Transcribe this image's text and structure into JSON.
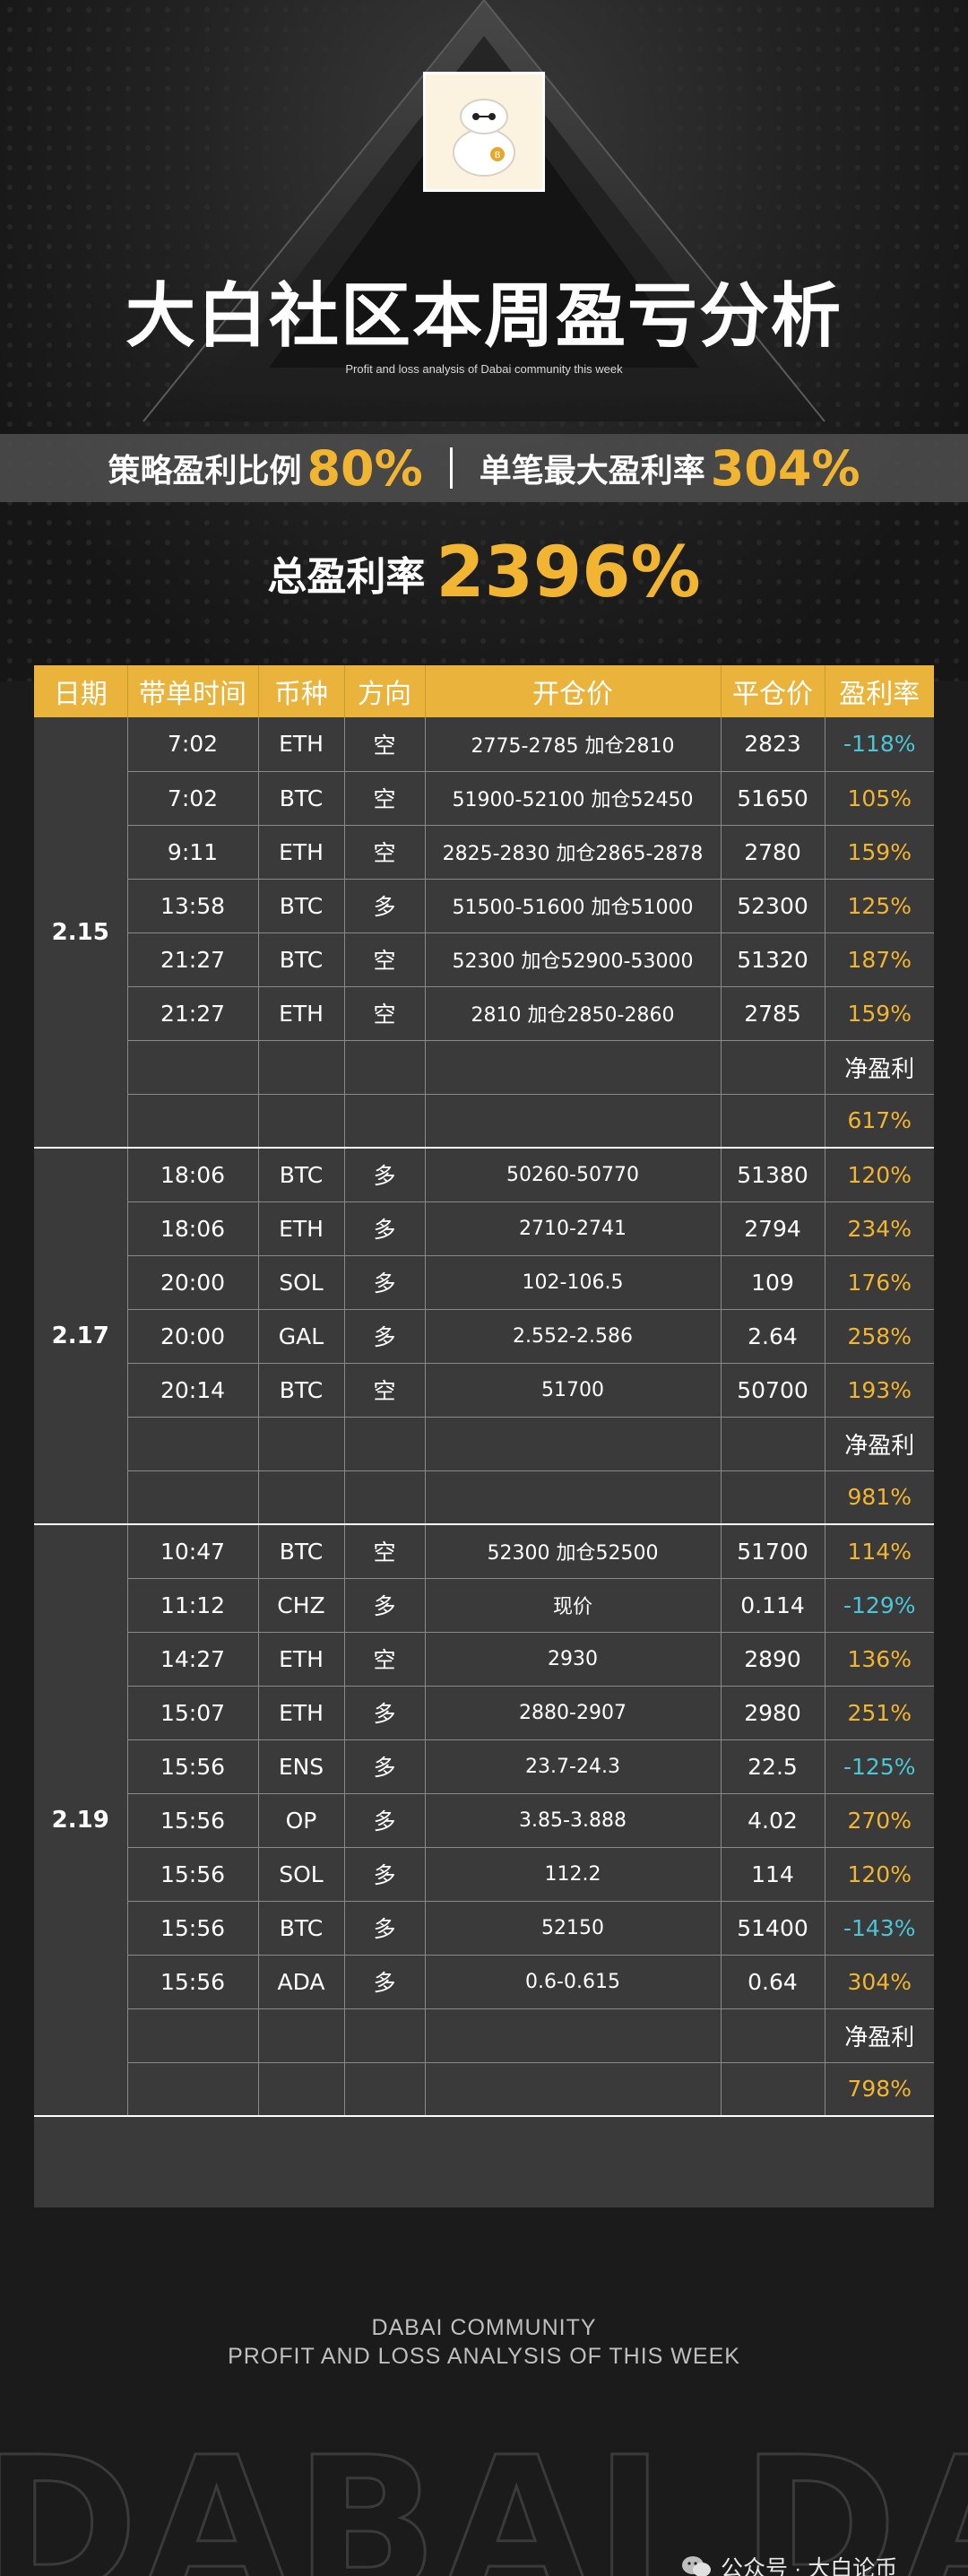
{
  "header": {
    "title": "大白社区本周盈亏分析",
    "subtitle": "Profit and loss analysis of Dabai community this week"
  },
  "stats": {
    "strategy_label": "策略盈利比例",
    "strategy_value": "80%",
    "max_label": "单笔最大盈利率",
    "max_value": "304%",
    "total_label": "总盈利率",
    "total_value": "2396%"
  },
  "table": {
    "headers": [
      "日期",
      "带单时间",
      "币种",
      "方向",
      "开仓价",
      "平仓价",
      "盈利率"
    ],
    "net_label": "净盈利",
    "groups": [
      {
        "date": "2.15",
        "net": "617%",
        "rows": [
          {
            "time": "7:02",
            "coin": "ETH",
            "dir": "空",
            "open": "2775-2785 加仓2810",
            "close": "2823",
            "rate": "-118%",
            "neg": true
          },
          {
            "time": "7:02",
            "coin": "BTC",
            "dir": "空",
            "open": "51900-52100 加仓52450",
            "close": "51650",
            "rate": "105%",
            "neg": false
          },
          {
            "time": "9:11",
            "coin": "ETH",
            "dir": "空",
            "open": "2825-2830 加仓2865-2878",
            "close": "2780",
            "rate": "159%",
            "neg": false
          },
          {
            "time": "13:58",
            "coin": "BTC",
            "dir": "多",
            "open": "51500-51600 加仓51000",
            "close": "52300",
            "rate": "125%",
            "neg": false
          },
          {
            "time": "21:27",
            "coin": "BTC",
            "dir": "空",
            "open": "52300 加仓52900-53000",
            "close": "51320",
            "rate": "187%",
            "neg": false
          },
          {
            "time": "21:27",
            "coin": "ETH",
            "dir": "空",
            "open": "2810 加仓2850-2860",
            "close": "2785",
            "rate": "159%",
            "neg": false
          }
        ]
      },
      {
        "date": "2.17",
        "net": "981%",
        "rows": [
          {
            "time": "18:06",
            "coin": "BTC",
            "dir": "多",
            "open": "50260-50770",
            "close": "51380",
            "rate": "120%",
            "neg": false
          },
          {
            "time": "18:06",
            "coin": "ETH",
            "dir": "多",
            "open": "2710-2741",
            "close": "2794",
            "rate": "234%",
            "neg": false
          },
          {
            "time": "20:00",
            "coin": "SOL",
            "dir": "多",
            "open": "102-106.5",
            "close": "109",
            "rate": "176%",
            "neg": false
          },
          {
            "time": "20:00",
            "coin": "GAL",
            "dir": "多",
            "open": "2.552-2.586",
            "close": "2.64",
            "rate": "258%",
            "neg": false
          },
          {
            "time": "20:14",
            "coin": "BTC",
            "dir": "空",
            "open": "51700",
            "close": "50700",
            "rate": "193%",
            "neg": false
          }
        ]
      },
      {
        "date": "2.19",
        "net": "798%",
        "rows": [
          {
            "time": "10:47",
            "coin": "BTC",
            "dir": "空",
            "open": "52300 加仓52500",
            "close": "51700",
            "rate": "114%",
            "neg": false
          },
          {
            "time": "11:12",
            "coin": "CHZ",
            "dir": "多",
            "open": "现价",
            "close": "0.114",
            "rate": "-129%",
            "neg": true
          },
          {
            "time": "14:27",
            "coin": "ETH",
            "dir": "空",
            "open": "2930",
            "close": "2890",
            "rate": "136%",
            "neg": false
          },
          {
            "time": "15:07",
            "coin": "ETH",
            "dir": "多",
            "open": "2880-2907",
            "close": "2980",
            "rate": "251%",
            "neg": false
          },
          {
            "time": "15:56",
            "coin": "ENS",
            "dir": "多",
            "open": "23.7-24.3",
            "close": "22.5",
            "rate": "-125%",
            "neg": true
          },
          {
            "time": "15:56",
            "coin": "OP",
            "dir": "多",
            "open": "3.85-3.888",
            "close": "4.02",
            "rate": "270%",
            "neg": false
          },
          {
            "time": "15:56",
            "coin": "SOL",
            "dir": "多",
            "open": "112.2",
            "close": "114",
            "rate": "120%",
            "neg": false
          },
          {
            "time": "15:56",
            "coin": "BTC",
            "dir": "多",
            "open": "52150",
            "close": "51400",
            "rate": "-143%",
            "neg": true
          },
          {
            "time": "15:56",
            "coin": "ADA",
            "dir": "多",
            "open": "0.6-0.615",
            "close": "0.64",
            "rate": "304%",
            "neg": false
          }
        ]
      }
    ]
  },
  "footer": {
    "line1": "DABAI COMMUNITY",
    "line2": "PROFIT AND LOSS ANALYSIS OF THIS WEEK",
    "watermark": "DABAI DABAI",
    "wechat": "公众号 · 大白论币"
  },
  "colors": {
    "accent": "#f2b532",
    "header_bg": "#eab43c",
    "negative": "#4cc6d6",
    "table_bg": "#3a3a3a",
    "page_bg": "#1b1b1b"
  },
  "icons": {
    "logo": "baymax-mascot-icon",
    "wechat": "wechat-icon"
  }
}
